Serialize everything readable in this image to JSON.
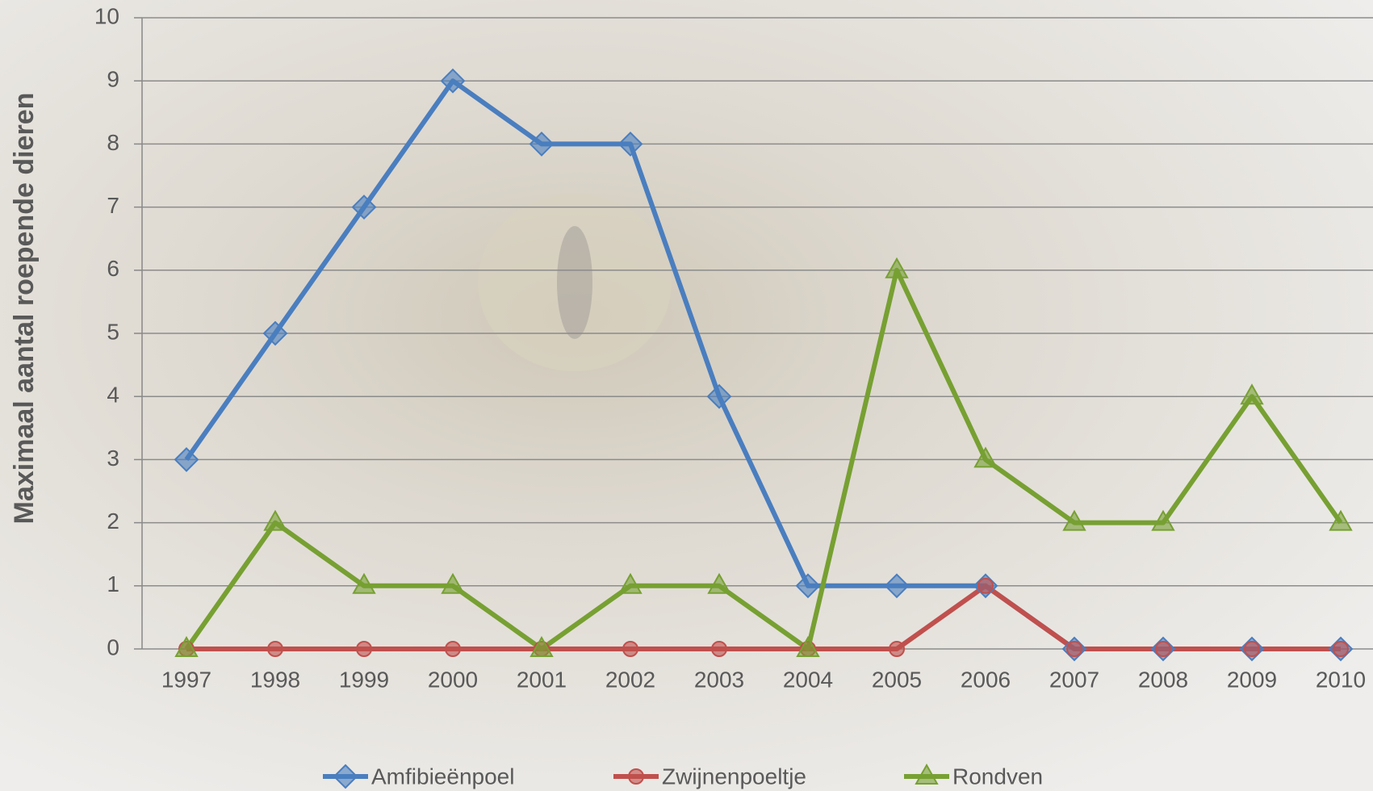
{
  "chart_data": {
    "type": "line",
    "y_label": "Maximaal aantal roepende dieren",
    "categories": [
      "1997",
      "1998",
      "1999",
      "2000",
      "2001",
      "2002",
      "2003",
      "2004",
      "2005",
      "2006",
      "2007",
      "2008",
      "2009",
      "2010"
    ],
    "series": [
      {
        "name": "Amfibieënpoel",
        "color": "#4a7ebf",
        "marker": "diamond",
        "values": [
          3,
          5,
          7,
          9,
          8,
          8,
          4,
          1,
          1,
          1,
          0,
          0,
          0,
          0
        ]
      },
      {
        "name": "Zwijnenpoeltje",
        "color": "#c0504d",
        "marker": "circle",
        "values": [
          0,
          0,
          0,
          0,
          0,
          0,
          0,
          0,
          0,
          1,
          0,
          0,
          0,
          0
        ]
      },
      {
        "name": "Rondven",
        "color": "#77a032",
        "marker": "triangle",
        "values": [
          0,
          2,
          1,
          1,
          0,
          1,
          1,
          0,
          6,
          3,
          2,
          2,
          4,
          2
        ]
      }
    ],
    "ylim": [
      0,
      10
    ],
    "yticks": [
      0,
      1,
      2,
      3,
      4,
      5,
      6,
      7,
      8,
      9,
      10
    ],
    "grid": true
  }
}
